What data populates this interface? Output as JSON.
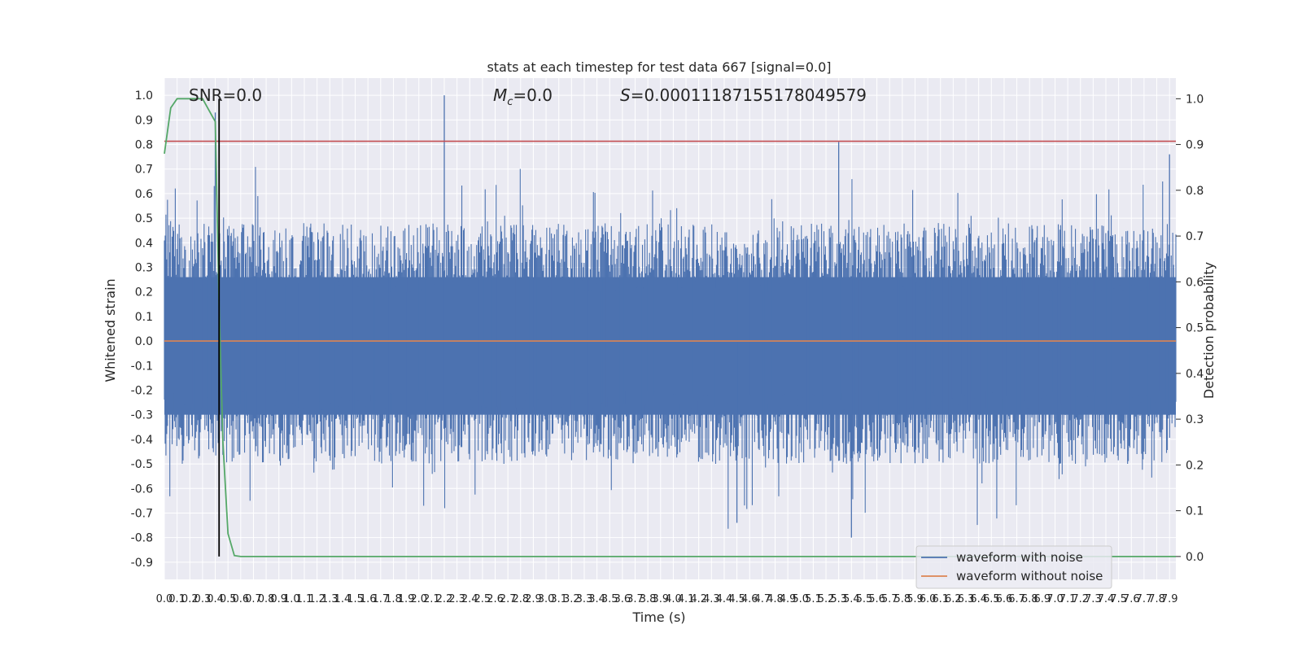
{
  "chart_data": {
    "type": "line",
    "title": "stats at each timestep for test data 667 [signal=0.0]",
    "xlabel": "Time (s)",
    "ylabel_left": "Whitened strain",
    "ylabel_right": "Detection probability",
    "xlim": [
      0.0,
      7.95
    ],
    "ylim_left": [
      -0.97,
      1.07
    ],
    "ylim_right": [
      -0.05,
      1.045
    ],
    "x_ticks": [
      "0.0",
      "0.1",
      "0.2",
      "0.3",
      "0.4",
      "0.5",
      "0.6",
      "0.7",
      "0.8",
      "0.9",
      "1.0",
      "1.1",
      "1.2",
      "1.3",
      "1.4",
      "1.5",
      "1.6",
      "1.7",
      "1.8",
      "1.9",
      "2.0",
      "2.1",
      "2.2",
      "2.3",
      "2.4",
      "2.5",
      "2.6",
      "2.7",
      "2.8",
      "2.9",
      "3.0",
      "3.1",
      "3.2",
      "3.3",
      "3.4",
      "3.5",
      "3.6",
      "3.7",
      "3.8",
      "3.9",
      "4.0",
      "4.1",
      "4.2",
      "4.3",
      "4.4",
      "4.5",
      "4.6",
      "4.7",
      "4.8",
      "4.9",
      "5.0",
      "5.1",
      "5.2",
      "5.3",
      "5.4",
      "5.5",
      "5.6",
      "5.7",
      "5.8",
      "5.9",
      "6.0",
      "6.1",
      "6.2",
      "6.3",
      "6.4",
      "6.5",
      "6.6",
      "6.7",
      "6.8",
      "6.9",
      "7.0",
      "7.1",
      "7.2",
      "7.3",
      "7.4",
      "7.5",
      "7.6",
      "7.7",
      "7.8",
      "7.9"
    ],
    "y_ticks_left": [
      "1.0",
      "0.9",
      "0.8",
      "0.7",
      "0.6",
      "0.5",
      "0.4",
      "0.3",
      "0.2",
      "0.1",
      "0.0",
      "-0.1",
      "-0.2",
      "-0.3",
      "-0.4",
      "-0.5",
      "-0.6",
      "-0.7",
      "-0.8",
      "-0.9"
    ],
    "y_ticks_right": [
      "1.0",
      "0.9",
      "0.8",
      "0.7",
      "0.6",
      "0.5",
      "0.4",
      "0.3",
      "0.2",
      "0.1",
      "0.0"
    ],
    "annotations": {
      "snr": "SNR=0.0",
      "mc_symbol": "M",
      "mc_sub": "c",
      "mc_value": "=0.0",
      "s_symbol": "S",
      "s_value": "=0.00011187155178049579"
    },
    "legend": {
      "placement": "lower-right",
      "entries": [
        "waveform with noise",
        "waveform without noise"
      ]
    },
    "series": [
      {
        "name": "waveform with noise",
        "axis": "left",
        "color": "#4c72b0",
        "kind": "noise",
        "envelope_upper_typical": 0.43,
        "envelope_lower_typical": -0.43,
        "spikes": [
          [
            0.4,
            0.93
          ],
          [
            2.2,
            1.0
          ],
          [
            5.3,
            0.81
          ],
          [
            7.9,
            0.76
          ],
          [
            0.43,
            -0.57
          ],
          [
            5.4,
            -0.8
          ],
          [
            4.5,
            -0.74
          ]
        ]
      },
      {
        "name": "waveform without noise",
        "axis": "left",
        "color": "#dd8452",
        "x": [
          0.0,
          7.95
        ],
        "y": [
          0.0,
          0.0
        ]
      },
      {
        "axis": "right",
        "color": "#55a868",
        "x": [
          0.0,
          0.05,
          0.1,
          0.2,
          0.3,
          0.4,
          0.43,
          0.46,
          0.5,
          0.55,
          0.6,
          1.0,
          7.95
        ],
        "y": [
          0.88,
          0.98,
          1.0,
          1.0,
          1.0,
          0.95,
          0.55,
          0.25,
          0.05,
          0.002,
          0.0,
          0.0,
          0.0
        ]
      }
    ],
    "threshold_line": {
      "axis": "left",
      "value": 0.813,
      "color": "#c44e52"
    },
    "event_marker": {
      "x": 0.43,
      "color": "#000000"
    },
    "grid": true,
    "background": "#eaeaf2"
  }
}
